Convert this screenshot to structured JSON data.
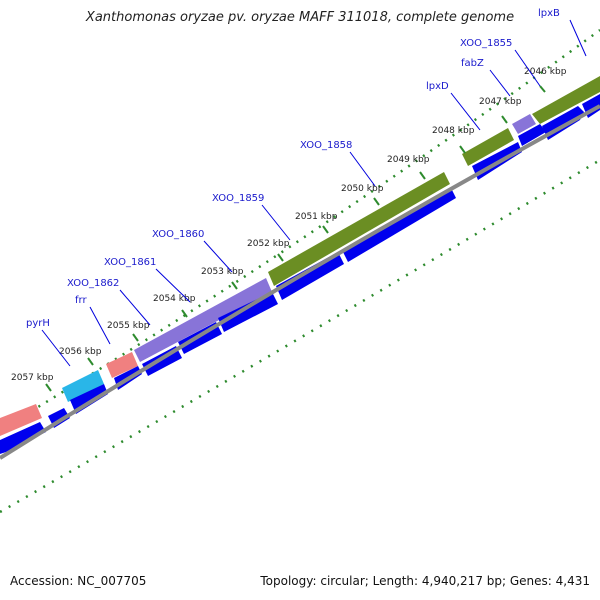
{
  "title": "Xanthomonas oryzae pv. oryzae MAFF 311018, complete genome",
  "footer": {
    "accession": "Accession: NC_007705",
    "summary": "Topology: circular; Length: 4,940,217 bp; Genes: 4,431"
  },
  "colors": {
    "kbp_tick": "#2e8b2e",
    "leader_line": "#0000dd",
    "gene_label": "#1a1acc",
    "cds": "#0000ee",
    "backbone": "#888888"
  },
  "kbp_labels": [
    "2046 kbp",
    "2047 kbp",
    "2048 kbp",
    "2049 kbp",
    "2050 kbp",
    "2051 kbp",
    "2052 kbp",
    "2053 kbp",
    "2054 kbp",
    "2055 kbp",
    "2056 kbp",
    "2057 kbp"
  ],
  "gene_labels": [
    "lpxB",
    "XOO_1855",
    "fabZ",
    "lpxD",
    "XOO_1858",
    "XOO_1859",
    "XOO_1860",
    "XOO_1861",
    "XOO_1862",
    "frr",
    "pyrH"
  ]
}
